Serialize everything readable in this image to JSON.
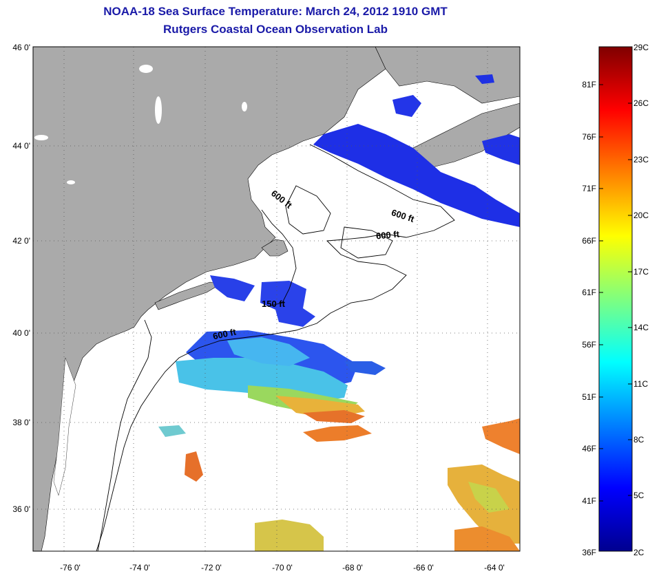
{
  "title": "NOAA-18 Sea Surface Temperature:  March 24, 2012 1910 GMT",
  "subtitle": "Rutgers Coastal Ocean Observation Lab",
  "lat_labels": [
    "46 0'",
    "44 0'",
    "42 0'",
    "40 0'",
    "38 0'",
    "36 0'"
  ],
  "lon_labels": [
    "-76 0'",
    "-74 0'",
    "-72 0'",
    "-70 0'",
    "-68 0'",
    "-66 0'",
    "-64 0'"
  ],
  "contour_labels": [
    "600 ft",
    "600 ft",
    "600 ft",
    "150 ft",
    "600 ft"
  ],
  "colorbar": {
    "fahrenheit": [
      "81F",
      "76F",
      "71F",
      "66F",
      "61F",
      "56F",
      "51F",
      "46F",
      "41F",
      "36F"
    ],
    "celsius": [
      "29C",
      "26C",
      "23C",
      "20C",
      "17C",
      "14C",
      "11C",
      "8C",
      "5C",
      "2C"
    ],
    "range_c": [
      2,
      29
    ],
    "colormap": "jet"
  },
  "colors": {
    "title": "#1a1aa8",
    "land": "#aaaaaa",
    "ocean": "#ffffff"
  }
}
